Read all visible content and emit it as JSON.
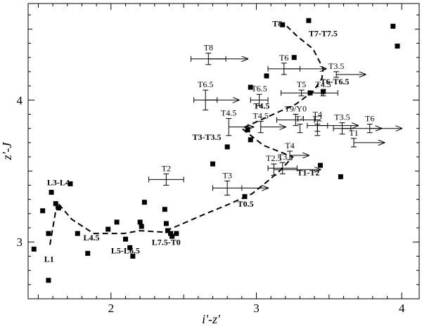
{
  "chart_data": {
    "type": "scatter",
    "title": "",
    "xlabel": "i'-z'",
    "ylabel": "z'-J",
    "xlim": [
      1.43,
      4.12
    ],
    "ylim": [
      2.6,
      4.68
    ],
    "xticks": [
      2,
      3,
      4
    ],
    "yticks": [
      3,
      4
    ],
    "grid": false,
    "legend": "none",
    "colors": {
      "points": "#000000",
      "sequence": "#000000",
      "arrows": "#000000"
    },
    "points": [
      {
        "x": 1.47,
        "y": 2.95
      },
      {
        "x": 1.53,
        "y": 3.22
      },
      {
        "x": 1.57,
        "y": 2.73
      },
      {
        "x": 1.57,
        "y": 3.06
      },
      {
        "x": 1.59,
        "y": 3.35
      },
      {
        "x": 1.62,
        "y": 3.27
      },
      {
        "x": 1.64,
        "y": 3.24
      },
      {
        "x": 1.72,
        "y": 3.41
      },
      {
        "x": 1.77,
        "y": 3.06
      },
      {
        "x": 1.84,
        "y": 2.92
      },
      {
        "x": 1.98,
        "y": 3.09
      },
      {
        "x": 2.04,
        "y": 3.14
      },
      {
        "x": 2.1,
        "y": 3.02
      },
      {
        "x": 2.13,
        "y": 2.96
      },
      {
        "x": 2.15,
        "y": 2.9
      },
      {
        "x": 2.2,
        "y": 3.14
      },
      {
        "x": 2.21,
        "y": 3.11
      },
      {
        "x": 2.23,
        "y": 3.28
      },
      {
        "x": 2.37,
        "y": 3.23
      },
      {
        "x": 2.38,
        "y": 3.13
      },
      {
        "x": 2.39,
        "y": 3.08
      },
      {
        "x": 2.41,
        "y": 3.06
      },
      {
        "x": 2.42,
        "y": 3.04
      },
      {
        "x": 2.45,
        "y": 3.06
      },
      {
        "x": 2.7,
        "y": 3.55
      },
      {
        "x": 2.8,
        "y": 3.67
      },
      {
        "x": 2.92,
        "y": 3.32
      },
      {
        "x": 2.94,
        "y": 3.79
      },
      {
        "x": 2.96,
        "y": 3.72
      },
      {
        "x": 2.96,
        "y": 4.09
      },
      {
        "x": 3.07,
        "y": 4.17
      },
      {
        "x": 3.18,
        "y": 4.53
      },
      {
        "x": 3.26,
        "y": 4.3
      },
      {
        "x": 3.36,
        "y": 4.56
      },
      {
        "x": 3.37,
        "y": 4.05
      },
      {
        "x": 3.44,
        "y": 3.54
      },
      {
        "x": 3.46,
        "y": 4.06
      },
      {
        "x": 3.58,
        "y": 3.46
      },
      {
        "x": 3.94,
        "y": 4.52
      },
      {
        "x": 3.97,
        "y": 4.38
      }
    ],
    "sequence_path": [
      [
        1.58,
        2.98
      ],
      [
        1.63,
        3.28
      ],
      [
        1.73,
        3.16
      ],
      [
        1.88,
        3.06
      ],
      [
        2.09,
        3.06
      ],
      [
        2.2,
        3.08
      ],
      [
        2.35,
        3.07
      ],
      [
        2.45,
        3.11
      ],
      [
        2.63,
        3.19
      ],
      [
        2.82,
        3.27
      ],
      [
        2.97,
        3.34
      ],
      [
        3.08,
        3.43
      ],
      [
        3.17,
        3.51
      ],
      [
        3.25,
        3.6
      ],
      [
        3.05,
        3.68
      ],
      [
        2.9,
        3.8
      ],
      [
        3.03,
        3.86
      ],
      [
        3.27,
        3.97
      ],
      [
        3.39,
        4.06
      ],
      [
        3.45,
        4.15
      ],
      [
        3.46,
        4.22
      ],
      [
        3.39,
        4.36
      ],
      [
        3.28,
        4.45
      ],
      [
        3.21,
        4.52
      ]
    ],
    "templates": [
      {
        "label": "T8",
        "x": 2.67,
        "y": 4.29,
        "x_err": 0.12,
        "y_err": 0.04,
        "arrow_to": 2.94
      },
      {
        "label": "T6",
        "x": 3.19,
        "y": 4.22,
        "x_err": 0.11,
        "y_err": 0.04,
        "arrow_to": 3.48
      },
      {
        "label": "T3.5",
        "x": 3.55,
        "y": 4.18,
        "x_err": 0,
        "y_err": 0.02,
        "arrow_to": 3.75
      },
      {
        "label": "T6.5",
        "x": 2.65,
        "y": 4.0,
        "x_err": 0.08,
        "y_err": 0.07,
        "arrow_to": 2.88
      },
      {
        "label": "T6.5",
        "x": 3.02,
        "y": 4.0,
        "x_err": 0.06,
        "y_err": 0.04,
        "arrow_to": 0
      },
      {
        "label": "T5",
        "x": 3.31,
        "y": 4.05,
        "x_err": 0.14,
        "y_err": 0.02,
        "arrow_to": 0
      },
      {
        "label": "T4.5",
        "x": 3.46,
        "y": 4.05,
        "x_err": 0.1,
        "y_err": 0.02,
        "arrow_to": 0
      },
      {
        "label": "T9/Y0",
        "x": 3.27,
        "y": 3.86,
        "x_err": 0.13,
        "y_err": 0.04,
        "arrow_to": 0
      },
      {
        "label": "T4.5",
        "x": 2.81,
        "y": 3.81,
        "x_err": 0,
        "y_err": 0.06,
        "arrow_to": 2.98
      },
      {
        "label": "T4.5",
        "x": 3.03,
        "y": 3.81,
        "x_err": 0,
        "y_err": 0.04,
        "arrow_to": 3.2
      },
      {
        "label": "T4",
        "x": 3.42,
        "y": 3.82,
        "x_err": 0.07,
        "y_err": 0.04,
        "arrow_to": 3.7
      },
      {
        "label": "T4",
        "x": 3.3,
        "y": 3.8,
        "x_err": 0,
        "y_err": 0.03,
        "arrow_to": 0
      },
      {
        "label": "T2",
        "x": 3.42,
        "y": 3.79,
        "x_err": 0,
        "y_err": 0.04,
        "arrow_to": 0
      },
      {
        "label": "T3.5",
        "x": 3.59,
        "y": 3.8,
        "x_err": 0.06,
        "y_err": 0.04,
        "arrow_to": 3.86
      },
      {
        "label": "T6",
        "x": 3.78,
        "y": 3.8,
        "x_err": 0,
        "y_err": 0.03,
        "arrow_to": 4.0
      },
      {
        "label": "T1",
        "x": 3.67,
        "y": 3.7,
        "x_err": 0,
        "y_err": 0.03,
        "arrow_to": 3.88
      },
      {
        "label": "T4",
        "x": 3.23,
        "y": 3.61,
        "x_err": 0,
        "y_err": 0.03,
        "arrow_to": 3.36
      },
      {
        "label": "T2",
        "x": 2.38,
        "y": 3.44,
        "x_err": 0.12,
        "y_err": 0.04,
        "arrow_to": 0
      },
      {
        "label": "T3",
        "x": 3.18,
        "y": 3.52,
        "x_err": 0.1,
        "y_err": 0.04,
        "arrow_to": 0
      },
      {
        "label": "T2.5",
        "x": 3.12,
        "y": 3.51,
        "x_err": 0,
        "y_err": 0.04,
        "arrow_to": 3.44
      },
      {
        "label": "T3",
        "x": 2.8,
        "y": 3.38,
        "x_err": 0.1,
        "y_err": 0.05,
        "arrow_to": 3.08
      }
    ],
    "annotations": [
      {
        "text": "T8",
        "x": 3.11,
        "y": 4.52,
        "bold": true
      },
      {
        "text": "T7-T7.5",
        "x": 3.36,
        "y": 4.45,
        "bold": true
      },
      {
        "text": "T6-T6.5",
        "x": 3.44,
        "y": 4.11,
        "bold": true
      },
      {
        "text": "T4.5",
        "x": 2.98,
        "y": 3.94,
        "bold": true
      },
      {
        "text": "T3-T3.5",
        "x": 2.56,
        "y": 3.72,
        "bold": true
      },
      {
        "text": "T1-T2",
        "x": 3.28,
        "y": 3.47,
        "bold": true
      },
      {
        "text": "T0.5",
        "x": 2.87,
        "y": 3.25,
        "bold": true
      },
      {
        "text": "L3-L4",
        "x": 1.56,
        "y": 3.4,
        "bold": true
      },
      {
        "text": "L4.5",
        "x": 1.81,
        "y": 3.01,
        "bold": true
      },
      {
        "text": "L5-L6.5",
        "x": 2.0,
        "y": 2.92,
        "bold": true
      },
      {
        "text": "L7.5-T0",
        "x": 2.28,
        "y": 2.98,
        "bold": true
      },
      {
        "text": "L1",
        "x": 1.54,
        "y": 2.86,
        "bold": true
      }
    ]
  }
}
